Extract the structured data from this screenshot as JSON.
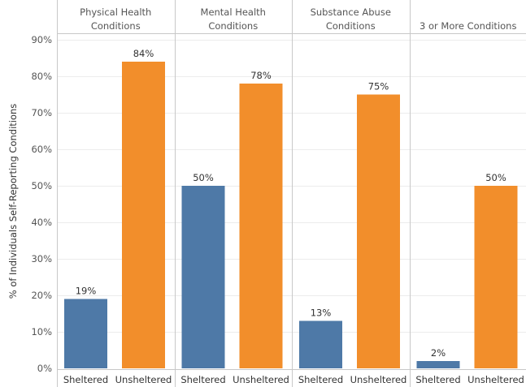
{
  "chart_data": {
    "type": "bar",
    "ylabel": "% of Individuals Self-Reporting Conditions",
    "ylim": [
      0,
      90
    ],
    "yticks": [
      0,
      10,
      20,
      30,
      40,
      50,
      60,
      70,
      80,
      90
    ],
    "ytick_labels": [
      "0%",
      "10%",
      "20%",
      "30%",
      "40%",
      "50%",
      "60%",
      "70%",
      "80%",
      "90%"
    ],
    "grid": true,
    "categories": [
      "Sheltered",
      "Unsheltered"
    ],
    "colors": {
      "Sheltered": "#4e79a7",
      "Unsheltered": "#f28e2b"
    },
    "panels": [
      {
        "title_lines": [
          "Physical Health",
          "Conditions"
        ],
        "values": [
          19,
          84
        ],
        "labels": [
          "19%",
          "84%"
        ]
      },
      {
        "title_lines": [
          "Mental Health",
          "Conditions"
        ],
        "values": [
          50,
          78
        ],
        "labels": [
          "50%",
          "78%"
        ]
      },
      {
        "title_lines": [
          "Substance Abuse",
          "Conditions"
        ],
        "values": [
          13,
          75
        ],
        "labels": [
          "13%",
          "75%"
        ]
      },
      {
        "title_lines": [
          "3 or More Conditions"
        ],
        "values": [
          2,
          50
        ],
        "labels": [
          "2%",
          "50%"
        ]
      }
    ]
  }
}
